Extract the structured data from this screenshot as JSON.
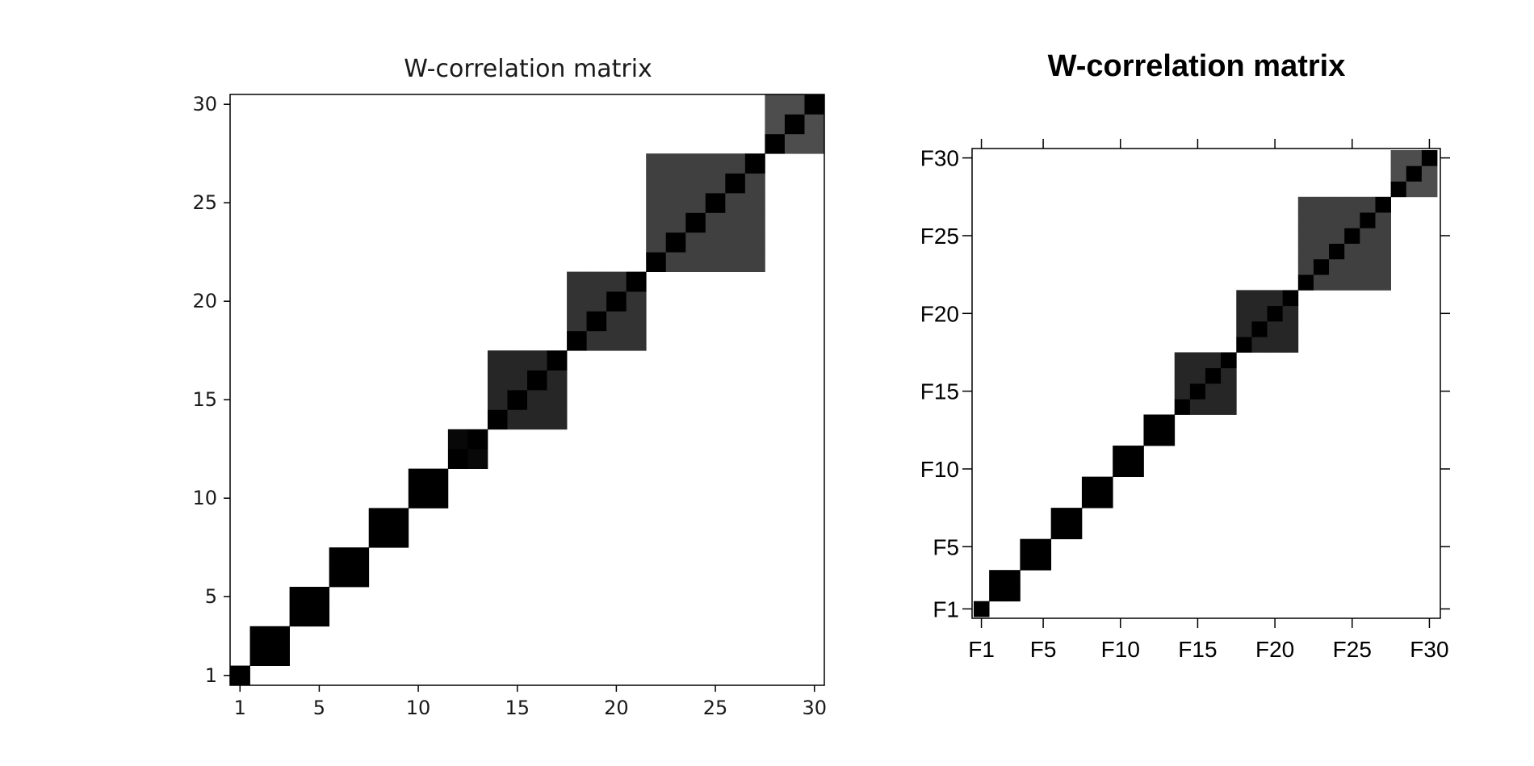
{
  "chart_data": [
    {
      "type": "heatmap",
      "title": "W-correlation matrix",
      "x_ticks": [
        "1",
        "5",
        "10",
        "15",
        "20",
        "25",
        "30"
      ],
      "y_ticks": [
        "1",
        "5",
        "10",
        "15",
        "20",
        "25",
        "30"
      ],
      "xlabel": "",
      "ylabel": "",
      "n": 30,
      "value_range": [
        0,
        1
      ],
      "colormap": "white-to-black",
      "grid": false,
      "blocks": [
        {
          "components": [
            1
          ],
          "w": 1.0
        },
        {
          "components": [
            2,
            3
          ],
          "w": 1.0
        },
        {
          "components": [
            4,
            5
          ],
          "w": 1.0
        },
        {
          "components": [
            6,
            7
          ],
          "w": 1.0
        },
        {
          "components": [
            8,
            9
          ],
          "w": 1.0
        },
        {
          "components": [
            10,
            11
          ],
          "w": 1.0
        },
        {
          "components": [
            12,
            13
          ],
          "w": 0.97
        },
        {
          "components": [
            14,
            15,
            16,
            17
          ],
          "w": 0.85
        },
        {
          "components": [
            18,
            19,
            20,
            21
          ],
          "w": 0.8
        },
        {
          "components": [
            22,
            23,
            24,
            25,
            26,
            27
          ],
          "w": 0.75
        },
        {
          "components": [
            28,
            29,
            30
          ],
          "w": 0.7
        }
      ]
    },
    {
      "type": "heatmap",
      "title": "W-correlation matrix",
      "x_ticks": [
        "F1",
        "F5",
        "F10",
        "F15",
        "F20",
        "F25",
        "F30"
      ],
      "y_ticks": [
        "F1",
        "F5",
        "F10",
        "F15",
        "F20",
        "F25",
        "F30"
      ],
      "xlabel": "",
      "ylabel": "",
      "n": 30,
      "value_range": [
        0,
        1
      ],
      "colormap": "white-to-black",
      "grid": false,
      "blocks": [
        {
          "components": [
            1
          ],
          "w": 1.0
        },
        {
          "components": [
            2,
            3
          ],
          "w": 1.0
        },
        {
          "components": [
            4,
            5
          ],
          "w": 1.0
        },
        {
          "components": [
            6,
            7
          ],
          "w": 1.0
        },
        {
          "components": [
            8,
            9
          ],
          "w": 1.0
        },
        {
          "components": [
            10,
            11
          ],
          "w": 1.0
        },
        {
          "components": [
            12,
            13
          ],
          "w": 1.0
        },
        {
          "components": [
            14,
            15,
            16,
            17
          ],
          "w": 0.85
        },
        {
          "components": [
            18,
            19,
            20,
            21
          ],
          "w": 0.85
        },
        {
          "components": [
            22,
            23,
            24,
            25,
            26,
            27
          ],
          "w": 0.75
        },
        {
          "components": [
            28,
            29,
            30
          ],
          "w": 0.7
        }
      ]
    }
  ]
}
